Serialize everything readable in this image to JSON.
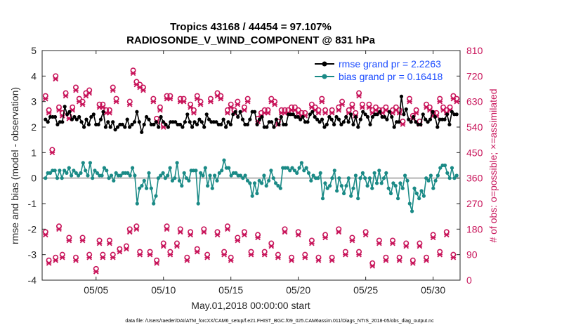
{
  "chart_data": {
    "type": "line",
    "title_line1": "Tropics 43168 / 44454 = 97.107%",
    "title_line2": "RADIOSONDE_V_WIND_COMPONENT @ 831 hPa",
    "xlabel": "May.01,2018 00:00:00 start",
    "ylabel_left": "rmse and bias (model - observation)",
    "ylabel_right": "# of obs: o=possible; ×=assimilated",
    "footer": "data file: /Users/raeder/DAI/ATM_forcXX/CAM6_setup/f.e21.FHIST_BGC.f09_025.CAM6assim.011/Diags_NTrS_2018-05/obs_diag_output.nc",
    "x_tick_labels": [
      "05/05",
      "05/10",
      "05/15",
      "05/20",
      "05/25",
      "05/30"
    ],
    "x_ticks": [
      5,
      10,
      15,
      20,
      25,
      30
    ],
    "x_range": [
      1,
      32
    ],
    "y_left_range": [
      -4,
      5
    ],
    "y_left_ticks": [
      "-4",
      "-3",
      "-2",
      "-1",
      "0",
      "1",
      "2",
      "3",
      "4",
      "5"
    ],
    "y_right_range": [
      0,
      810
    ],
    "y_right_ticks": [
      "0",
      "90",
      "180",
      "270",
      "360",
      "450",
      "540",
      "630",
      "720",
      "810"
    ],
    "legend": {
      "rmse_label": "rmse grand pr = 2.2263",
      "bias_label": "bias grand pr = 0.16418"
    },
    "colors": {
      "rmse": "#000000",
      "bias": "#1a8a86",
      "obs": "#c8145a",
      "zero_line": "#b4b4b4",
      "legend_text": "#1a4bff",
      "axis": "#262626"
    },
    "series_rmse": [
      2.3,
      2.2,
      2.4,
      2.4,
      2.4,
      2.1,
      2.2,
      2.2,
      2.8,
      2.5,
      2.6,
      2.3,
      2.4,
      2.3,
      2.4,
      2.2,
      2.0,
      2.3,
      2.1,
      2.4,
      2.5,
      2.1,
      2.1,
      2.3,
      2.6,
      2.0,
      2.2,
      2.0,
      2.2,
      1.9,
      2.0,
      2.1,
      2.1,
      2.0,
      2.3,
      2.0,
      2.1,
      2.2,
      2.6,
      2.2,
      1.8,
      2.1,
      2.4,
      2.3,
      2.1,
      2.1,
      2.2,
      2.0,
      2.4,
      2.2,
      2.1,
      2.0,
      2.2,
      2.2,
      2.2,
      2.1,
      2.1,
      2.0,
      2.2,
      2.5,
      2.2,
      2.0,
      2.2,
      2.1,
      2.3,
      2.2,
      2.0,
      2.5,
      2.3,
      2.2,
      2.2,
      2.2,
      2.1,
      2.1,
      2.3,
      2.0,
      2.2,
      2.1,
      2.5,
      2.6,
      2.4,
      2.6,
      2.3,
      2.1,
      2.1,
      2.3,
      2.6,
      2.6,
      2.1,
      2.3,
      2.4,
      2.0,
      2.0,
      2.2,
      2.2,
      2.0,
      2.3,
      2.1,
      2.4,
      2.1,
      2.1,
      2.5,
      2.5,
      2.5,
      2.4,
      2.4,
      2.3,
      2.4,
      2.2,
      2.2,
      2.5,
      2.6,
      2.4,
      2.3,
      2.2,
      2.3,
      2.0,
      2.1,
      2.4,
      2.3,
      2.1,
      2.4,
      2.3,
      2.1,
      2.2,
      2.4,
      2.2,
      2.5,
      2.1,
      2.4,
      2.0,
      2.3,
      2.6,
      2.5,
      2.4,
      2.1,
      2.4,
      2.5,
      2.5,
      2.6,
      2.4,
      2.4,
      2.3,
      2.6,
      2.4,
      2.0,
      2.2,
      2.2,
      3.2,
      2.5,
      2.7,
      2.3,
      2.2,
      2.4,
      2.2,
      2.1,
      2.1,
      2.5,
      2.3,
      2.2,
      2.3,
      2.6,
      2.4,
      2.0,
      2.3,
      2.3,
      2.3,
      2.5,
      2.1,
      2.6,
      2.5,
      2.5
    ],
    "series_bias": [
      0.0,
      0.2,
      0.2,
      0.3,
      0.3,
      0.0,
      0.3,
      0.0,
      0.3,
      0.2,
      0.4,
      0.1,
      0.3,
      0.2,
      0.1,
      0.2,
      0.6,
      0.3,
      0.1,
      0.6,
      0.0,
      0.3,
      0.2,
      0.1,
      0.1,
      0.4,
      0.3,
      0.0,
      0.1,
      -0.1,
      0.2,
      0.1,
      0.1,
      0.2,
      0.2,
      0.2,
      0.1,
      0.4,
      0.1,
      -1.0,
      -0.4,
      -0.3,
      -0.1,
      -0.4,
      0.2,
      -0.4,
      -1.0,
      -0.7,
      0.0,
      0.1,
      0.2,
      0.0,
      0.1,
      0.4,
      -0.1,
      0.0,
      0.6,
      -0.1,
      -0.3,
      0.2,
      0.0,
      -0.1,
      0.3,
      0.3,
      0.3,
      -1.0,
      0.2,
      0.1,
      0.4,
      -0.3,
      0.1,
      -0.4,
      0.1,
      -0.1,
      0.2,
      0.3,
      0.7,
      0.4,
      0.4,
      0.1,
      0.2,
      0.2,
      0.1,
      0.1,
      0.0,
      0.1,
      -0.1,
      -0.2,
      -0.7,
      -0.2,
      -0.6,
      -0.1,
      -0.2,
      0.1,
      -0.3,
      -0.1,
      0.3,
      0.0,
      -0.2,
      -0.3,
      -0.4,
      0.4,
      0.4,
      0.4,
      0.3,
      0.4,
      0.3,
      0.2,
      0.4,
      0.6,
      0.3,
      0.4,
      0.2,
      -0.1,
      0.1,
      0.0,
      0.0,
      0.2,
      -0.8,
      -0.2,
      -0.4,
      -0.3,
      0.0,
      0.3,
      -0.5,
      0.0,
      -0.3,
      -0.6,
      -0.3,
      0.0,
      -0.7,
      -0.4,
      0.1,
      -0.8,
      0.0,
      0.2,
      0.0,
      -0.3,
      0.0,
      -0.4,
      0.2,
      -0.2,
      0.3,
      -0.2,
      0.0,
      0.2,
      -0.4,
      -0.6,
      -0.2,
      -0.3,
      -0.8,
      -0.2,
      -0.4,
      0.1,
      -0.1,
      -1.0,
      -1.3,
      -0.4,
      -0.6,
      -0.8,
      -0.5,
      -0.7,
      0.0,
      -0.1,
      0.1,
      -0.4,
      -0.1,
      0.1,
      0.4,
      0.5,
      0.5,
      0.2,
      0.0,
      0.4,
      0.0,
      0.1
    ],
    "obs_possible": [
      [
        1.25,
        650
      ],
      [
        1.5,
        600
      ],
      [
        1.75,
        460
      ],
      [
        2.0,
        720
      ],
      [
        2.25,
        610
      ],
      [
        2.5,
        590
      ],
      [
        2.75,
        660
      ],
      [
        3.0,
        580
      ],
      [
        3.25,
        610
      ],
      [
        3.5,
        680
      ],
      [
        3.75,
        640
      ],
      [
        4.0,
        630
      ],
      [
        4.25,
        660
      ],
      [
        4.5,
        670
      ],
      [
        5.25,
        620
      ],
      [
        5.5,
        620
      ],
      [
        5.75,
        600
      ],
      [
        6.0,
        600
      ],
      [
        6.25,
        680
      ],
      [
        6.5,
        640
      ],
      [
        7.5,
        630
      ],
      [
        7.75,
        740
      ],
      [
        8.0,
        700
      ],
      [
        8.25,
        690
      ],
      [
        8.5,
        680
      ],
      [
        9.25,
        640
      ],
      [
        9.5,
        570
      ],
      [
        9.75,
        610
      ],
      [
        10.0,
        550
      ],
      [
        10.25,
        650
      ],
      [
        10.5,
        650
      ],
      [
        11.25,
        640
      ],
      [
        11.5,
        640
      ],
      [
        12.0,
        620
      ],
      [
        12.25,
        600
      ],
      [
        12.5,
        650
      ],
      [
        12.75,
        630
      ],
      [
        13.5,
        640
      ],
      [
        14.0,
        660
      ],
      [
        14.25,
        650
      ],
      [
        14.75,
        600
      ],
      [
        15.0,
        620
      ],
      [
        15.25,
        600
      ],
      [
        15.5,
        630
      ],
      [
        16.0,
        610
      ],
      [
        16.25,
        640
      ],
      [
        17.0,
        570
      ],
      [
        17.25,
        590
      ],
      [
        17.5,
        600
      ],
      [
        17.75,
        600
      ],
      [
        18.0,
        640
      ],
      [
        18.25,
        630
      ],
      [
        18.5,
        560
      ],
      [
        18.75,
        600
      ],
      [
        19.0,
        600
      ],
      [
        19.25,
        600
      ],
      [
        19.5,
        610
      ],
      [
        19.75,
        610
      ],
      [
        20.0,
        600
      ],
      [
        20.25,
        590
      ],
      [
        20.5,
        590
      ],
      [
        21.0,
        620
      ],
      [
        21.25,
        610
      ],
      [
        21.5,
        600
      ],
      [
        21.75,
        640
      ],
      [
        22.0,
        600
      ],
      [
        22.5,
        600
      ],
      [
        23.0,
        610
      ],
      [
        23.25,
        630
      ],
      [
        23.75,
        600
      ],
      [
        24.0,
        620
      ],
      [
        24.25,
        590
      ],
      [
        24.5,
        660
      ],
      [
        24.75,
        620
      ],
      [
        25.25,
        620
      ],
      [
        25.5,
        600
      ],
      [
        25.75,
        610
      ],
      [
        26.0,
        600
      ],
      [
        26.25,
        600
      ],
      [
        26.5,
        610
      ],
      [
        27.0,
        600
      ],
      [
        27.25,
        610
      ],
      [
        27.5,
        600
      ],
      [
        27.75,
        560
      ],
      [
        28.25,
        640
      ],
      [
        28.5,
        580
      ],
      [
        28.75,
        600
      ],
      [
        29.0,
        560
      ],
      [
        29.5,
        620
      ],
      [
        29.75,
        610
      ],
      [
        30.0,
        590
      ],
      [
        30.25,
        590
      ],
      [
        30.5,
        640
      ],
      [
        30.75,
        610
      ],
      [
        31.0,
        600
      ],
      [
        31.25,
        610
      ],
      [
        31.5,
        650
      ],
      [
        31.75,
        640
      ]
    ],
    "obs_assimilated": [
      [
        1.25,
        640
      ],
      [
        1.5,
        590
      ],
      [
        1.75,
        450
      ],
      [
        2.0,
        710
      ],
      [
        2.25,
        600
      ],
      [
        2.5,
        580
      ],
      [
        2.75,
        650
      ],
      [
        3.0,
        570
      ],
      [
        3.25,
        600
      ],
      [
        3.5,
        670
      ],
      [
        3.75,
        630
      ],
      [
        4.0,
        620
      ],
      [
        4.25,
        650
      ],
      [
        4.5,
        660
      ],
      [
        5.25,
        610
      ],
      [
        5.5,
        610
      ],
      [
        5.75,
        590
      ],
      [
        6.0,
        590
      ],
      [
        6.25,
        670
      ],
      [
        6.5,
        630
      ],
      [
        7.5,
        620
      ],
      [
        7.75,
        730
      ],
      [
        8.0,
        690
      ],
      [
        8.25,
        680
      ],
      [
        8.5,
        670
      ],
      [
        9.25,
        630
      ],
      [
        9.5,
        560
      ],
      [
        9.75,
        600
      ],
      [
        10.0,
        540
      ],
      [
        10.25,
        640
      ],
      [
        10.5,
        640
      ],
      [
        11.25,
        630
      ],
      [
        11.5,
        630
      ],
      [
        12.0,
        610
      ],
      [
        12.25,
        590
      ],
      [
        12.5,
        640
      ],
      [
        12.75,
        620
      ],
      [
        13.5,
        630
      ],
      [
        14.0,
        650
      ],
      [
        14.25,
        640
      ],
      [
        14.75,
        590
      ],
      [
        15.0,
        610
      ],
      [
        15.25,
        590
      ],
      [
        15.5,
        620
      ],
      [
        16.0,
        600
      ],
      [
        16.25,
        630
      ],
      [
        17.0,
        560
      ],
      [
        17.25,
        580
      ],
      [
        17.5,
        590
      ],
      [
        17.75,
        590
      ],
      [
        18.0,
        630
      ],
      [
        18.25,
        620
      ],
      [
        18.5,
        550
      ],
      [
        18.75,
        590
      ],
      [
        19.0,
        590
      ],
      [
        19.25,
        590
      ],
      [
        19.5,
        600
      ],
      [
        19.75,
        600
      ],
      [
        20.0,
        590
      ],
      [
        20.25,
        580
      ],
      [
        20.5,
        580
      ],
      [
        21.0,
        610
      ],
      [
        21.25,
        600
      ],
      [
        21.5,
        590
      ],
      [
        21.75,
        630
      ],
      [
        22.0,
        590
      ],
      [
        22.5,
        590
      ],
      [
        23.0,
        600
      ],
      [
        23.25,
        620
      ],
      [
        23.75,
        590
      ],
      [
        24.0,
        610
      ],
      [
        24.25,
        580
      ],
      [
        24.5,
        650
      ],
      [
        24.75,
        610
      ],
      [
        25.25,
        610
      ],
      [
        25.5,
        590
      ],
      [
        25.75,
        600
      ],
      [
        26.0,
        590
      ],
      [
        26.25,
        590
      ],
      [
        26.5,
        600
      ],
      [
        27.0,
        590
      ],
      [
        27.25,
        600
      ],
      [
        27.5,
        590
      ],
      [
        27.75,
        550
      ],
      [
        28.25,
        630
      ],
      [
        28.5,
        570
      ],
      [
        28.75,
        590
      ],
      [
        29.0,
        550
      ],
      [
        29.5,
        610
      ],
      [
        29.75,
        600
      ],
      [
        30.0,
        580
      ],
      [
        30.25,
        580
      ],
      [
        30.5,
        630
      ],
      [
        30.75,
        600
      ],
      [
        31.0,
        590
      ],
      [
        31.25,
        600
      ],
      [
        31.5,
        640
      ],
      [
        31.75,
        630
      ]
    ],
    "obs_possible_low": [
      [
        1.25,
        170
      ],
      [
        1.5,
        70
      ],
      [
        2.0,
        80
      ],
      [
        2.25,
        190
      ],
      [
        2.5,
        90
      ],
      [
        3.0,
        150
      ],
      [
        3.5,
        80
      ],
      [
        4.0,
        150
      ],
      [
        4.5,
        90
      ],
      [
        5.0,
        40
      ],
      [
        5.25,
        140
      ],
      [
        5.5,
        90
      ],
      [
        6.0,
        140
      ],
      [
        6.25,
        90
      ],
      [
        6.75,
        110
      ],
      [
        7.25,
        120
      ],
      [
        7.5,
        180
      ],
      [
        8.0,
        190
      ],
      [
        8.25,
        100
      ],
      [
        9.0,
        100
      ],
      [
        9.5,
        70
      ],
      [
        10.0,
        130
      ],
      [
        10.25,
        190
      ],
      [
        10.5,
        100
      ],
      [
        11.0,
        130
      ],
      [
        11.25,
        180
      ],
      [
        11.75,
        80
      ],
      [
        12.0,
        170
      ],
      [
        12.5,
        110
      ],
      [
        13.0,
        180
      ],
      [
        13.25,
        90
      ],
      [
        14.0,
        170
      ],
      [
        14.5,
        100
      ],
      [
        14.75,
        190
      ],
      [
        15.0,
        80
      ],
      [
        15.5,
        150
      ],
      [
        16.0,
        170
      ],
      [
        16.5,
        100
      ],
      [
        17.0,
        160
      ],
      [
        17.5,
        100
      ],
      [
        18.0,
        130
      ],
      [
        18.5,
        90
      ],
      [
        19.0,
        180
      ],
      [
        19.5,
        80
      ],
      [
        20.0,
        170
      ],
      [
        20.5,
        90
      ],
      [
        21.0,
        140
      ],
      [
        21.5,
        80
      ],
      [
        22.0,
        160
      ],
      [
        22.5,
        80
      ],
      [
        23.0,
        180
      ],
      [
        23.5,
        100
      ],
      [
        24.0,
        150
      ],
      [
        24.5,
        100
      ],
      [
        25.0,
        170
      ],
      [
        25.5,
        60
      ],
      [
        26.0,
        140
      ],
      [
        26.5,
        80
      ],
      [
        27.0,
        140
      ],
      [
        27.5,
        80
      ],
      [
        28.0,
        130
      ],
      [
        28.5,
        70
      ],
      [
        29.0,
        130
      ],
      [
        29.5,
        80
      ],
      [
        30.0,
        160
      ],
      [
        30.5,
        100
      ],
      [
        31.0,
        170
      ],
      [
        31.5,
        90
      ]
    ],
    "obs_assimilated_low": [
      [
        1.25,
        160
      ],
      [
        1.5,
        60
      ],
      [
        2.0,
        70
      ],
      [
        2.25,
        180
      ],
      [
        2.5,
        80
      ],
      [
        3.0,
        140
      ],
      [
        3.5,
        70
      ],
      [
        4.0,
        140
      ],
      [
        4.5,
        80
      ],
      [
        5.0,
        30
      ],
      [
        5.25,
        130
      ],
      [
        5.5,
        80
      ],
      [
        6.0,
        130
      ],
      [
        6.25,
        80
      ],
      [
        6.75,
        100
      ],
      [
        7.25,
        110
      ],
      [
        7.5,
        170
      ],
      [
        8.0,
        180
      ],
      [
        8.25,
        90
      ],
      [
        9.0,
        90
      ],
      [
        9.5,
        60
      ],
      [
        10.0,
        120
      ],
      [
        10.25,
        180
      ],
      [
        10.5,
        90
      ],
      [
        11.0,
        120
      ],
      [
        11.25,
        170
      ],
      [
        11.75,
        70
      ],
      [
        12.0,
        160
      ],
      [
        12.5,
        100
      ],
      [
        13.0,
        170
      ],
      [
        13.25,
        80
      ],
      [
        14.0,
        160
      ],
      [
        14.5,
        90
      ],
      [
        14.75,
        180
      ],
      [
        15.0,
        70
      ],
      [
        15.5,
        140
      ],
      [
        16.0,
        160
      ],
      [
        16.5,
        90
      ],
      [
        17.0,
        150
      ],
      [
        17.5,
        90
      ],
      [
        18.0,
        120
      ],
      [
        18.5,
        80
      ],
      [
        19.0,
        170
      ],
      [
        19.5,
        70
      ],
      [
        20.0,
        160
      ],
      [
        20.5,
        80
      ],
      [
        21.0,
        130
      ],
      [
        21.5,
        70
      ],
      [
        22.0,
        150
      ],
      [
        22.5,
        70
      ],
      [
        23.0,
        170
      ],
      [
        23.5,
        90
      ],
      [
        24.0,
        140
      ],
      [
        24.5,
        90
      ],
      [
        25.0,
        160
      ],
      [
        25.5,
        50
      ],
      [
        26.0,
        130
      ],
      [
        26.5,
        70
      ],
      [
        27.0,
        130
      ],
      [
        27.5,
        70
      ],
      [
        28.0,
        120
      ],
      [
        28.5,
        60
      ],
      [
        29.0,
        120
      ],
      [
        29.5,
        70
      ],
      [
        30.0,
        150
      ],
      [
        30.5,
        90
      ],
      [
        31.0,
        160
      ],
      [
        31.5,
        80
      ]
    ]
  }
}
